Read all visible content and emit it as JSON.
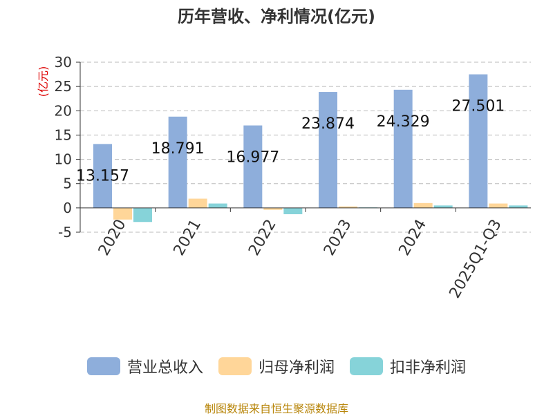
{
  "chart_data": {
    "type": "bar",
    "title": "历年营收、净利情况(亿元)",
    "ylabel": "(亿元)",
    "xlabel": "",
    "categories": [
      "2020",
      "2021",
      "2022",
      "2023",
      "2024",
      "2025Q1-Q3"
    ],
    "series": [
      {
        "name": "营业总收入",
        "color": "#8eaedb",
        "values": [
          13.157,
          18.791,
          16.977,
          23.874,
          24.329,
          27.501
        ],
        "data_labels": [
          "13.157",
          "18.791",
          "16.977",
          "23.874",
          "24.329",
          "27.501"
        ]
      },
      {
        "name": "归母净利润",
        "color": "#ffd699",
        "values": [
          -2.4,
          1.9,
          -0.4,
          0.3,
          1.0,
          0.9
        ]
      },
      {
        "name": "扣非净利润",
        "color": "#86d3d9",
        "values": [
          -2.9,
          0.9,
          -1.3,
          0.1,
          0.5,
          0.5
        ]
      }
    ],
    "ylim": [
      -5,
      30
    ],
    "yticks": [
      -5,
      0,
      5,
      10,
      15,
      20,
      25,
      30
    ],
    "grid": true,
    "legend": "bottom"
  },
  "footer": {
    "source": "制图数据来自恒生聚源数据库"
  }
}
